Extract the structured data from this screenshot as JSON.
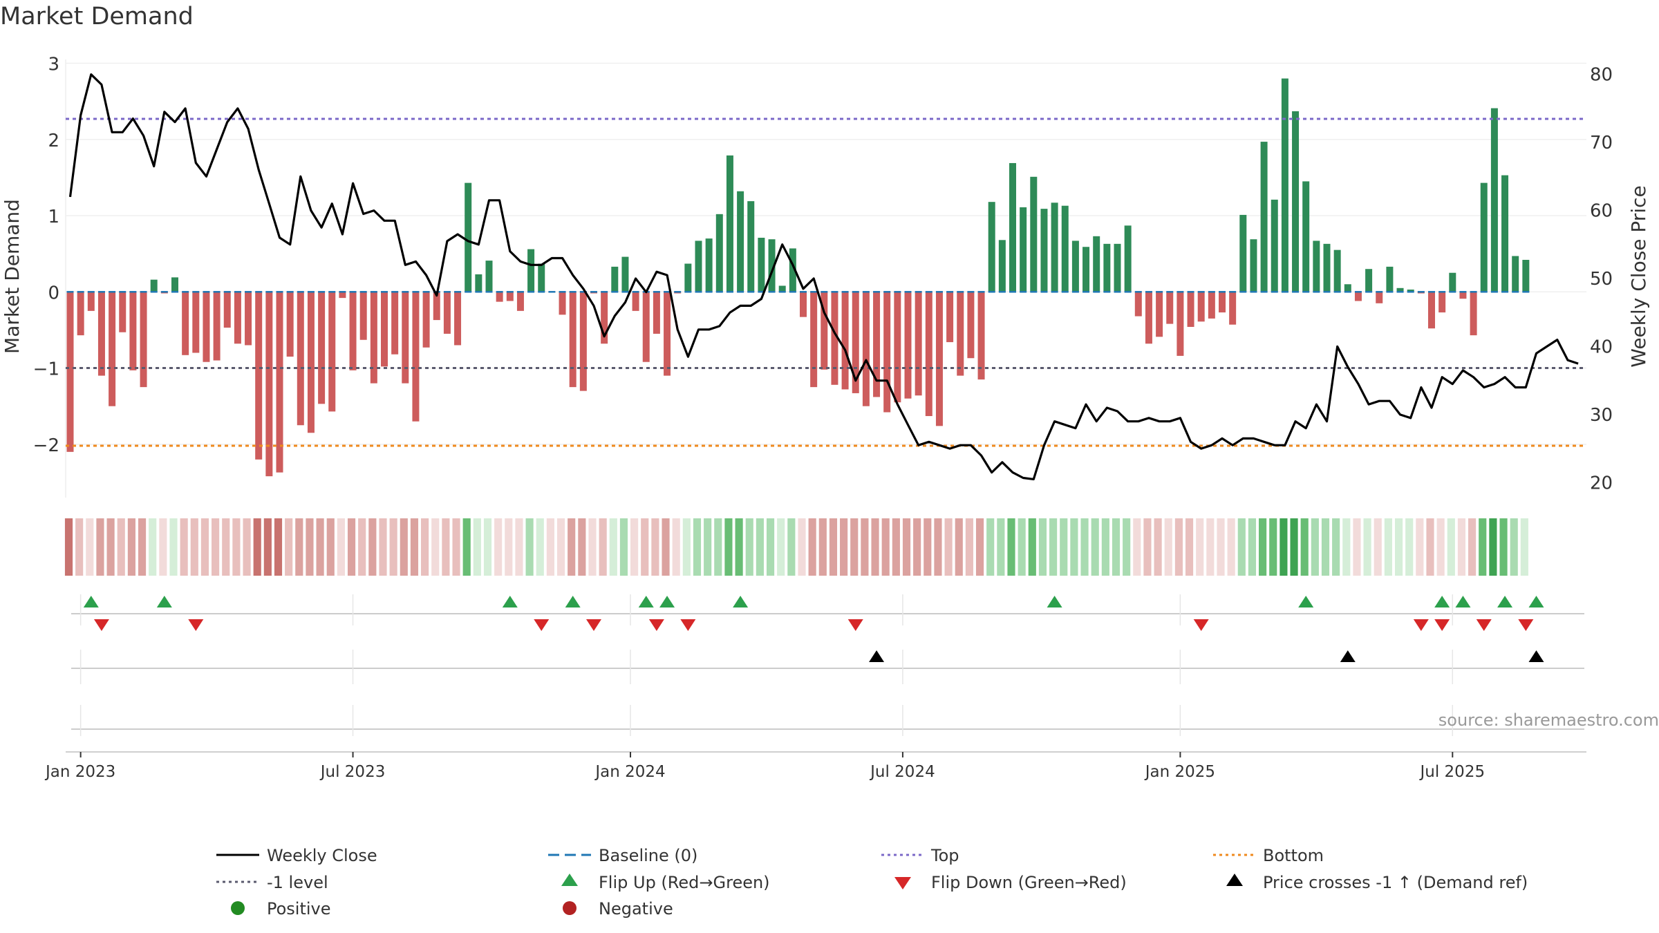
{
  "chart_data": {
    "type": "bar",
    "title": "Market Demand",
    "ylabel": "Market Demand",
    "y2label": "Weekly Close Price",
    "ylim": [
      -2.7,
      3.05
    ],
    "y2lim": [
      17.8,
      82.2
    ],
    "yticks": [
      3,
      2,
      1,
      0,
      -1,
      -2
    ],
    "ytick_labels": [
      "3",
      "2",
      "1",
      "0",
      "−1",
      "−2"
    ],
    "y2ticks": [
      80,
      70,
      60,
      50,
      40,
      30,
      20
    ],
    "x_ticks": [
      {
        "label": "Jan 2023",
        "week": 1
      },
      {
        "label": "Jul 2023",
        "week": 27
      },
      {
        "label": "Jan 2024",
        "week": 53.5
      },
      {
        "label": "Jul 2024",
        "week": 79.5
      },
      {
        "label": "Jan 2025",
        "week": 106
      },
      {
        "label": "Jul 2025",
        "week": 132
      }
    ],
    "reference_lines": {
      "top": 2.27,
      "minus_one": -1.0,
      "bottom": -2.02,
      "baseline": 0
    },
    "demand": [
      -2.1,
      -0.57,
      -0.25,
      -1.1,
      -1.5,
      -0.53,
      -1.03,
      -1.25,
      0.16,
      -0.02,
      0.19,
      -0.83,
      -0.8,
      -0.92,
      -0.9,
      -0.47,
      -0.68,
      -0.7,
      -2.2,
      -2.42,
      -2.37,
      -0.85,
      -1.75,
      -1.85,
      -1.47,
      -1.57,
      -0.08,
      -1.03,
      -0.63,
      -1.2,
      -0.98,
      -0.82,
      -1.2,
      -1.7,
      -0.73,
      -0.37,
      -0.55,
      -0.7,
      1.43,
      0.23,
      0.41,
      -0.13,
      -0.12,
      -0.25,
      0.56,
      0.37,
      -0.01,
      -0.3,
      -1.25,
      -1.3,
      -0.02,
      -0.68,
      0.33,
      0.46,
      -0.25,
      -0.92,
      -0.55,
      -1.1,
      -0.02,
      0.37,
      0.67,
      0.7,
      1.02,
      1.79,
      1.32,
      1.19,
      0.71,
      0.69,
      0.08,
      0.57,
      -0.33,
      -1.25,
      -1.02,
      -1.22,
      -1.28,
      -1.33,
      -1.5,
      -1.38,
      -1.58,
      -1.45,
      -1.4,
      -1.36,
      -1.63,
      -1.76,
      -0.66,
      -1.1,
      -0.87,
      -1.15,
      1.18,
      0.68,
      1.69,
      1.11,
      1.51,
      1.09,
      1.17,
      1.13,
      0.67,
      0.59,
      0.73,
      0.63,
      0.63,
      0.87,
      -0.32,
      -0.68,
      -0.59,
      -0.42,
      -0.84,
      -0.46,
      -0.39,
      -0.35,
      -0.27,
      -0.43,
      1.01,
      0.69,
      1.97,
      1.21,
      2.8,
      2.37,
      1.45,
      0.67,
      0.63,
      0.55,
      0.1,
      -0.12,
      0.3,
      -0.15,
      0.33,
      0.05,
      0.03,
      -0.02,
      -0.48,
      -0.27,
      0.25,
      -0.09,
      -0.57,
      1.43,
      2.41,
      1.53,
      0.47,
      0.42
    ],
    "close": [
      62,
      74,
      80,
      78.5,
      71.5,
      71.5,
      73.5,
      71,
      66.5,
      74.5,
      73,
      75,
      67,
      65,
      69,
      73,
      75,
      72,
      66,
      61,
      56,
      55,
      65,
      60,
      57.5,
      61,
      56.5,
      64,
      59.5,
      60,
      58.5,
      58.5,
      52,
      52.5,
      50.5,
      47.5,
      55.5,
      56.5,
      55.5,
      55,
      61.5,
      61.5,
      54,
      52.5,
      52,
      52,
      53,
      53,
      50.5,
      48.5,
      46,
      41.5,
      44.5,
      46.5,
      50,
      48,
      51,
      50.5,
      42.5,
      38.5,
      42.5,
      42.5,
      43,
      45,
      46,
      46,
      47,
      51,
      55,
      52,
      48.5,
      50,
      45,
      42,
      39.5,
      35,
      38,
      35,
      35,
      31.5,
      28.5,
      25.5,
      26,
      25.5,
      25,
      25.5,
      25.5,
      24,
      21.5,
      23,
      21.5,
      20.7,
      20.5,
      25.5,
      29,
      28.5,
      28,
      31.5,
      29,
      31,
      30.5,
      29,
      29,
      29.5,
      29,
      29,
      29.5,
      26,
      25,
      25.5,
      26.5,
      25.5,
      26.5,
      26.5,
      26,
      25.5,
      25.5,
      29,
      28,
      31.5,
      29,
      40,
      37,
      34.5,
      31.5,
      32,
      32,
      30,
      29.5,
      34,
      31,
      35.5,
      34.5,
      36.5,
      35.5,
      34,
      34.5,
      35.5,
      34,
      34,
      39,
      40,
      41,
      38,
      37.5
    ]
  },
  "flip_up_weeks": [
    2,
    9,
    42,
    48,
    55,
    57,
    64,
    94,
    118,
    131,
    133,
    137,
    140
  ],
  "flip_down_weeks": [
    3,
    12,
    45,
    50,
    56,
    59,
    75,
    108,
    129,
    131,
    135,
    139
  ],
  "cross_weeks": [
    77,
    122,
    140
  ],
  "strip_colors": {
    "green_dark": "#3ea352",
    "green_mid": "#68bd74",
    "green_light": "#a9dbb1",
    "green_pale": "#d5eed8",
    "red_dark": "#c8736f",
    "red_mid": "#dba29f",
    "red_light": "#e8bfbd",
    "red_pale": "#f2dbda"
  },
  "colors": {
    "positive_bar": "#2e8b57",
    "negative_bar": "#cd5c5c",
    "close_line": "#000000",
    "baseline": "#1f77b4",
    "top": "#7b68c8",
    "minus_one": "#5a5a6e",
    "bottom": "#ef8a1e",
    "flip_up": "#2ca04c",
    "flip_down": "#d62728",
    "cross": "#000000",
    "positive_dot": "#228b22",
    "negative_dot": "#b22222"
  },
  "source": "source: sharemaestro.com",
  "legend": [
    {
      "key": "weekly_close",
      "label": "Weekly Close"
    },
    {
      "key": "baseline",
      "label": "Baseline (0)"
    },
    {
      "key": "top",
      "label": "Top"
    },
    {
      "key": "bottom",
      "label": "Bottom"
    },
    {
      "key": "minus_one",
      "label": "-1 level"
    },
    {
      "key": "flip_up",
      "label": "Flip Up (Red→Green)"
    },
    {
      "key": "flip_down",
      "label": "Flip Down (Green→Red)"
    },
    {
      "key": "cross",
      "label": "Price crosses -1 ↑ (Demand ref)"
    },
    {
      "key": "positive",
      "label": "Positive"
    },
    {
      "key": "negative",
      "label": "Negative"
    }
  ]
}
